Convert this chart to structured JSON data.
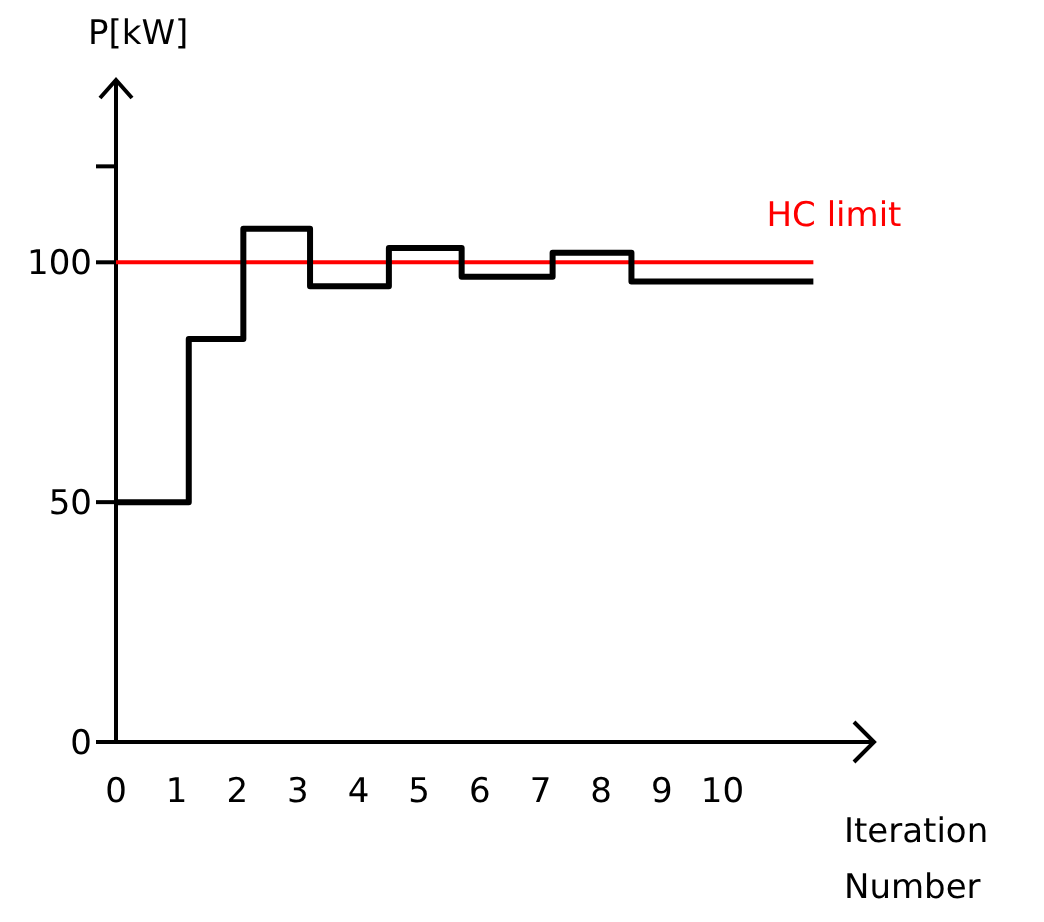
{
  "chart_data": {
    "type": "step",
    "ylabel": "P[kW]",
    "xlabel": "Iteration Number",
    "x": [
      0,
      1.2,
      2.1,
      3.2,
      4.5,
      5.7,
      7.2,
      8.5,
      11.5
    ],
    "series": [
      {
        "color": "#000000",
        "values": [
          50,
          84,
          107,
          95,
          103,
          97,
          102,
          96,
          96
        ]
      }
    ],
    "xlim": [
      0,
      12.5
    ],
    "xticks": [
      0,
      1,
      2,
      3,
      4,
      5,
      6,
      7,
      8,
      9,
      10
    ],
    "ylim": [
      0,
      138
    ],
    "yticks": [
      0,
      50,
      100,
      {
        "value": 120,
        "label": null
      }
    ],
    "ref_lines": [
      {
        "axis": "y",
        "value": 100,
        "label": "HC limit",
        "color": "#ff0000"
      }
    ],
    "grid": false
  }
}
